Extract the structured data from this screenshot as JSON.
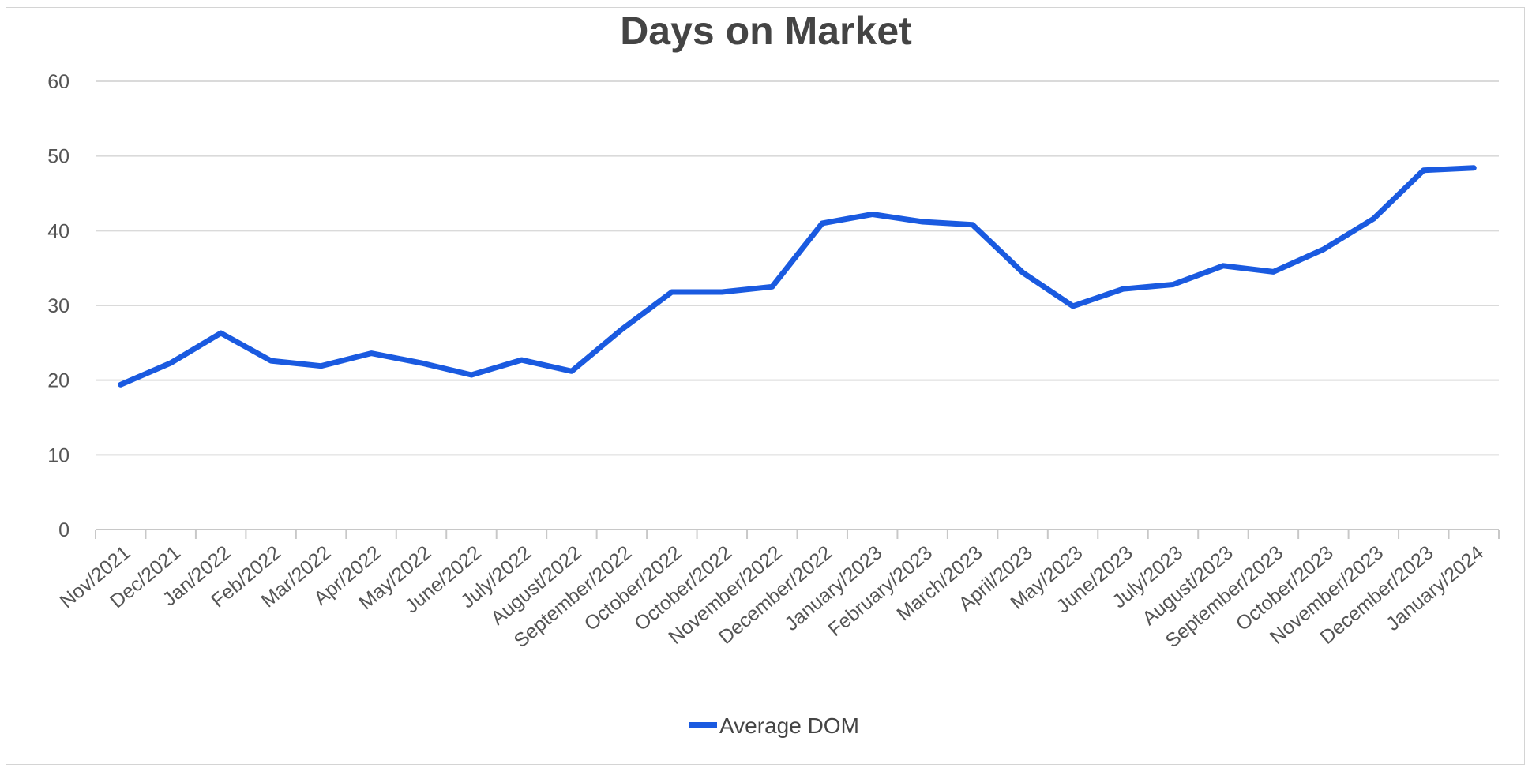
{
  "chart_data": {
    "type": "line",
    "title": "Days on Market",
    "xlabel": "",
    "ylabel": "",
    "ylim": [
      0,
      60
    ],
    "yticks": [
      0,
      10,
      20,
      30,
      40,
      50,
      60
    ],
    "grid": true,
    "legend_position": "bottom",
    "categories": [
      "Nov/2021",
      "Dec/2021",
      "Jan/2022",
      "Feb/2022",
      "Mar/2022",
      "Apr/2022",
      "May/2022",
      "June/2022",
      "July/2022",
      "August/2022",
      "September/2022",
      "October/2022",
      "October/2022",
      "November/2022",
      "December/2022",
      "January/2023",
      "February/2023",
      "March/2023",
      "April/2023",
      "May/2023",
      "June/2023",
      "July/2023",
      "August/2023",
      "September/2023",
      "October/2023",
      "November/2023",
      "December/2023",
      "January/2024"
    ],
    "series": [
      {
        "name": "Average DOM",
        "color": "#1a5ae0",
        "values": [
          19.4,
          22.3,
          26.3,
          22.6,
          21.9,
          23.6,
          22.3,
          20.7,
          22.7,
          21.2,
          26.8,
          31.8,
          31.8,
          32.5,
          41.0,
          42.2,
          41.2,
          40.8,
          34.4,
          29.9,
          32.2,
          32.8,
          35.3,
          34.5,
          37.5,
          41.6,
          48.1,
          48.4
        ]
      }
    ]
  }
}
